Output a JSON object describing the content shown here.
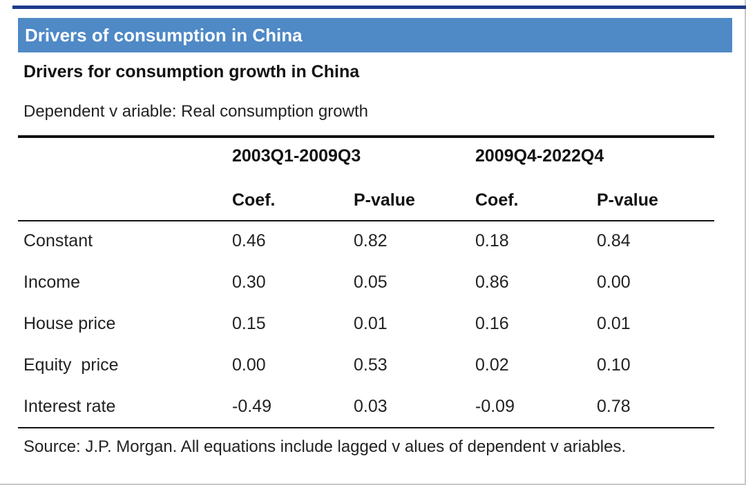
{
  "header": {
    "title": "Drivers of consumption in China"
  },
  "table_title": "Drivers for consumption growth in China",
  "dependent_variable": "Dependent v ariable: Real consumption growth",
  "periods": [
    "2003Q1-2009Q3",
    "2009Q4-2022Q4"
  ],
  "column_headers": [
    "Coef.",
    "P-value",
    "Coef.",
    "P-value"
  ],
  "rows": [
    {
      "label": "Constant",
      "values": [
        "0.46",
        "0.82",
        "0.18",
        "0.84"
      ]
    },
    {
      "label": "Income",
      "values": [
        "0.30",
        "0.05",
        "0.86",
        "0.00"
      ]
    },
    {
      "label": "House price",
      "values": [
        "0.15",
        "0.01",
        "0.16",
        "0.01"
      ]
    },
    {
      "label": "Equity  price",
      "values": [
        "0.00",
        "0.53",
        "0.02",
        "0.10"
      ]
    },
    {
      "label": "Interest rate",
      "values": [
        "-0.49",
        "0.03",
        "-0.09",
        "0.78"
      ]
    }
  ],
  "source": "Source: J.P. Morgan. All equations include lagged v alues of dependent v ariables.",
  "colors": {
    "header_bar": "#4f89c6",
    "top_rule": "#1f3a8a"
  }
}
